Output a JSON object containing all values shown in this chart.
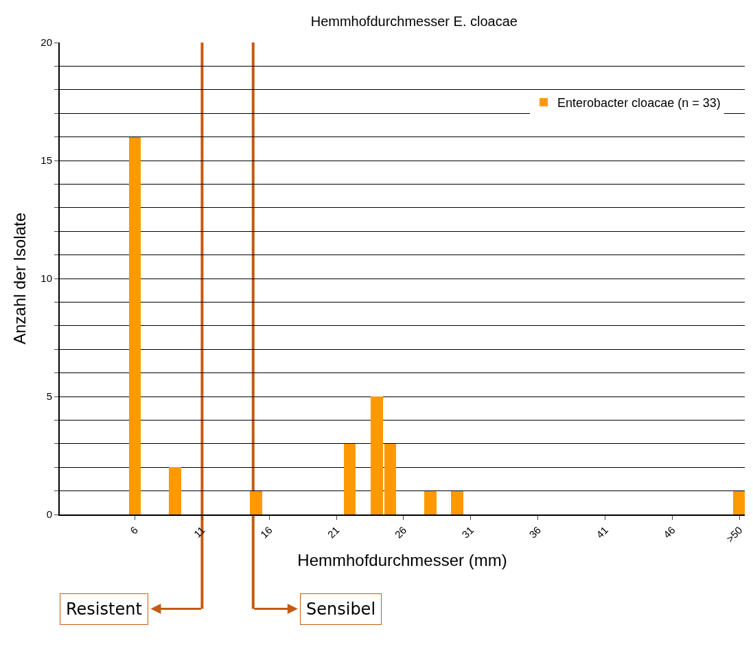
{
  "chart_data": {
    "type": "bar",
    "title": "Hemmhofdurchmesser E. cloacae",
    "xlabel": "Hemmhofdurchmesser (mm)",
    "ylabel": "Anzahl der Isolate",
    "x": [
      6,
      9,
      15,
      22,
      24,
      25,
      28,
      30,
      51
    ],
    "series": [
      {
        "name": "Enterobacter cloacae (n = 33)",
        "color": "#ff9900",
        "values": [
          16,
          2,
          1,
          3,
          5,
          3,
          1,
          1,
          1
        ]
      }
    ],
    "xlim": [
      0.4,
      51.4
    ],
    "xticks": [
      6,
      11,
      16,
      21,
      26,
      31,
      36,
      41,
      46,
      {
        "value": 51,
        "label": ">50"
      }
    ],
    "ylim": [
      0,
      20
    ],
    "yticks": [
      0,
      {
        "value": 1,
        "label": null
      },
      {
        "value": 2,
        "label": null
      },
      {
        "value": 3,
        "label": null
      },
      {
        "value": 4,
        "label": null
      },
      5,
      {
        "value": 6,
        "label": null
      },
      {
        "value": 7,
        "label": null
      },
      {
        "value": 8,
        "label": null
      },
      {
        "value": 9,
        "label": null
      },
      10,
      {
        "value": 11,
        "label": null
      },
      {
        "value": 12,
        "label": null
      },
      {
        "value": 13,
        "label": null
      },
      {
        "value": 14,
        "label": null
      },
      15,
      {
        "value": 16,
        "label": null
      },
      {
        "value": 17,
        "label": null
      },
      {
        "value": 18,
        "label": null
      },
      {
        "value": 19,
        "label": null
      },
      20
    ],
    "grid": "y",
    "legend": "top right",
    "ref_lines": [
      {
        "axis": "x",
        "value": 11,
        "label": "Resistent",
        "color": "#c55a11"
      },
      {
        "axis": "x",
        "value": 14.8,
        "label": "Sensibel",
        "color": "#c55a11"
      }
    ]
  }
}
